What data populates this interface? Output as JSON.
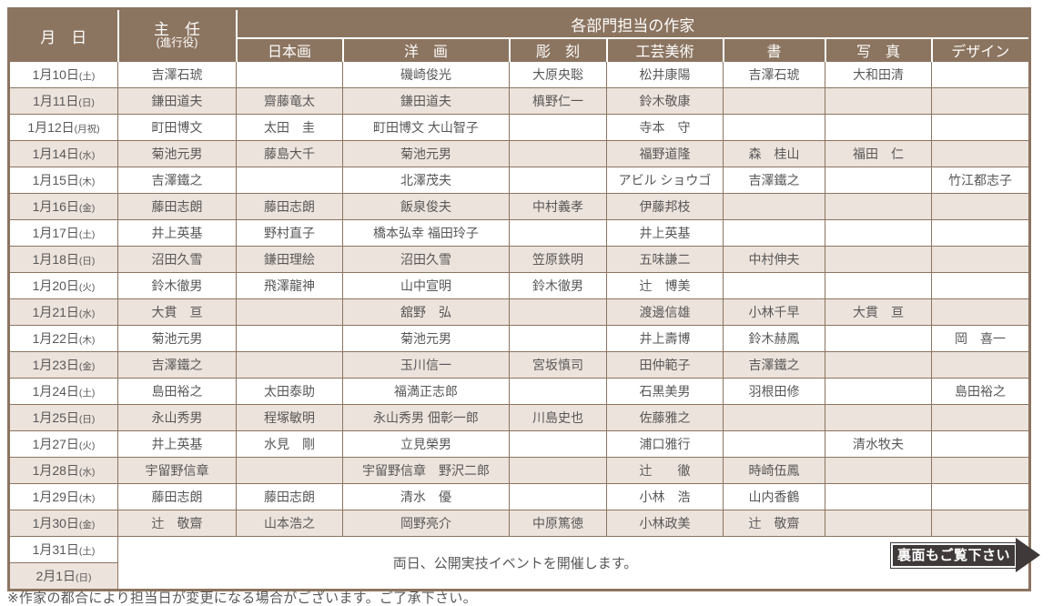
{
  "colors": {
    "header_bg": "#8b7460",
    "alt_row_bg": "#ece3dc",
    "border": "#8b7460",
    "text": "#595757",
    "arrow_bg": "#3f3a39"
  },
  "table": {
    "header": {
      "date_col": "月　日",
      "chief_line1": "主　任",
      "chief_line2": "(進行役)",
      "group_col": "各部門担当の作家",
      "dept_cols": [
        "日本画",
        "洋　画",
        "彫　刻",
        "工芸美術",
        "書",
        "写　真",
        "デザイン"
      ]
    },
    "rows": [
      {
        "date": "1月10日",
        "weekday": "土",
        "chief": "吉澤石琥",
        "cells": [
          "",
          "磯崎俊光",
          "大原央聡",
          "松井康陽",
          "吉澤石琥",
          "大和田清",
          ""
        ]
      },
      {
        "date": "1月11日",
        "weekday": "日",
        "chief": "鎌田道夫",
        "cells": [
          "齋藤竜太",
          "鎌田道夫",
          "槙野仁一",
          "鈴木敬康",
          "",
          "",
          ""
        ]
      },
      {
        "date": "1月12日",
        "weekday": "月祝",
        "chief": "町田博文",
        "cells": [
          "太田　圭",
          "町田博文 大山智子",
          "",
          "寺本　守",
          "",
          "",
          ""
        ]
      },
      {
        "date": "1月14日",
        "weekday": "水",
        "chief": "菊池元男",
        "cells": [
          "藤島大千",
          "菊池元男",
          "",
          "福野道隆",
          "森　桂山",
          "福田　仁",
          ""
        ]
      },
      {
        "date": "1月15日",
        "weekday": "木",
        "chief": "吉澤鐵之",
        "cells": [
          "",
          "北澤茂夫",
          "",
          "アビル ショウゴ",
          "吉澤鐵之",
          "",
          "竹江都志子"
        ]
      },
      {
        "date": "1月16日",
        "weekday": "金",
        "chief": "藤田志朗",
        "cells": [
          "藤田志朗",
          "飯泉俊夫",
          "中村義孝",
          "伊藤邦枝",
          "",
          "",
          ""
        ]
      },
      {
        "date": "1月17日",
        "weekday": "土",
        "chief": "井上英基",
        "cells": [
          "野村直子",
          "橋本弘幸 福田玲子",
          "",
          "井上英基",
          "",
          "",
          ""
        ]
      },
      {
        "date": "1月18日",
        "weekday": "日",
        "chief": "沼田久雪",
        "cells": [
          "鎌田理絵",
          "沼田久雪",
          "笠原鉄明",
          "五味謙二",
          "中村伸夫",
          "",
          ""
        ]
      },
      {
        "date": "1月20日",
        "weekday": "火",
        "chief": "鈴木徹男",
        "cells": [
          "飛澤龍神",
          "山中宣明",
          "鈴木徹男",
          "辻　博美",
          "",
          "",
          ""
        ]
      },
      {
        "date": "1月21日",
        "weekday": "水",
        "chief": "大貫　亘",
        "cells": [
          "",
          "舘野　弘",
          "",
          "渡邊信雄",
          "小林千早",
          "大貫　亘",
          ""
        ]
      },
      {
        "date": "1月22日",
        "weekday": "木",
        "chief": "菊池元男",
        "cells": [
          "",
          "菊池元男",
          "",
          "井上壽博",
          "鈴木赫鳳",
          "",
          "岡　喜一"
        ]
      },
      {
        "date": "1月23日",
        "weekday": "金",
        "chief": "吉澤鐵之",
        "cells": [
          "",
          "玉川信一",
          "宮坂慎司",
          "田仲範子",
          "吉澤鐵之",
          "",
          ""
        ]
      },
      {
        "date": "1月24日",
        "weekday": "土",
        "chief": "島田裕之",
        "cells": [
          "太田泰助",
          "福満正志郎",
          "",
          "石黒美男",
          "羽根田修",
          "",
          "島田裕之"
        ]
      },
      {
        "date": "1月25日",
        "weekday": "日",
        "chief": "永山秀男",
        "cells": [
          "程塚敏明",
          "永山秀男 佃彰一郎",
          "川島史也",
          "佐藤雅之",
          "",
          "",
          ""
        ]
      },
      {
        "date": "1月27日",
        "weekday": "火",
        "chief": "井上英基",
        "cells": [
          "水見　剛",
          "立見榮男",
          "",
          "浦口雅行",
          "",
          "清水牧夫",
          ""
        ]
      },
      {
        "date": "1月28日",
        "weekday": "水",
        "chief": "宇留野信章",
        "cells": [
          "",
          "宇留野信章　野沢二郎",
          "",
          "辻　　徹",
          "時崎伍鳳",
          "",
          ""
        ]
      },
      {
        "date": "1月29日",
        "weekday": "木",
        "chief": "藤田志朗",
        "cells": [
          "藤田志朗",
          "清水　優",
          "",
          "小林　浩",
          "山内香鶴",
          "",
          ""
        ]
      },
      {
        "date": "1月30日",
        "weekday": "金",
        "chief": "辻　敬齋",
        "cells": [
          "山本浩之",
          "岡野亮介",
          "中原篤徳",
          "小林政美",
          "辻　敬齋",
          "",
          ""
        ]
      }
    ],
    "footer_rows": [
      {
        "date": "1月31日",
        "weekday": "土"
      },
      {
        "date": "2月1日",
        "weekday": "日"
      }
    ],
    "footer_note": "両日、公開実技イベントを開催します。",
    "arrow_label": "裏面もご覧下さい"
  },
  "footnote": "※作家の都合により担当日が変更になる場合がございます。ご了承下さい。"
}
